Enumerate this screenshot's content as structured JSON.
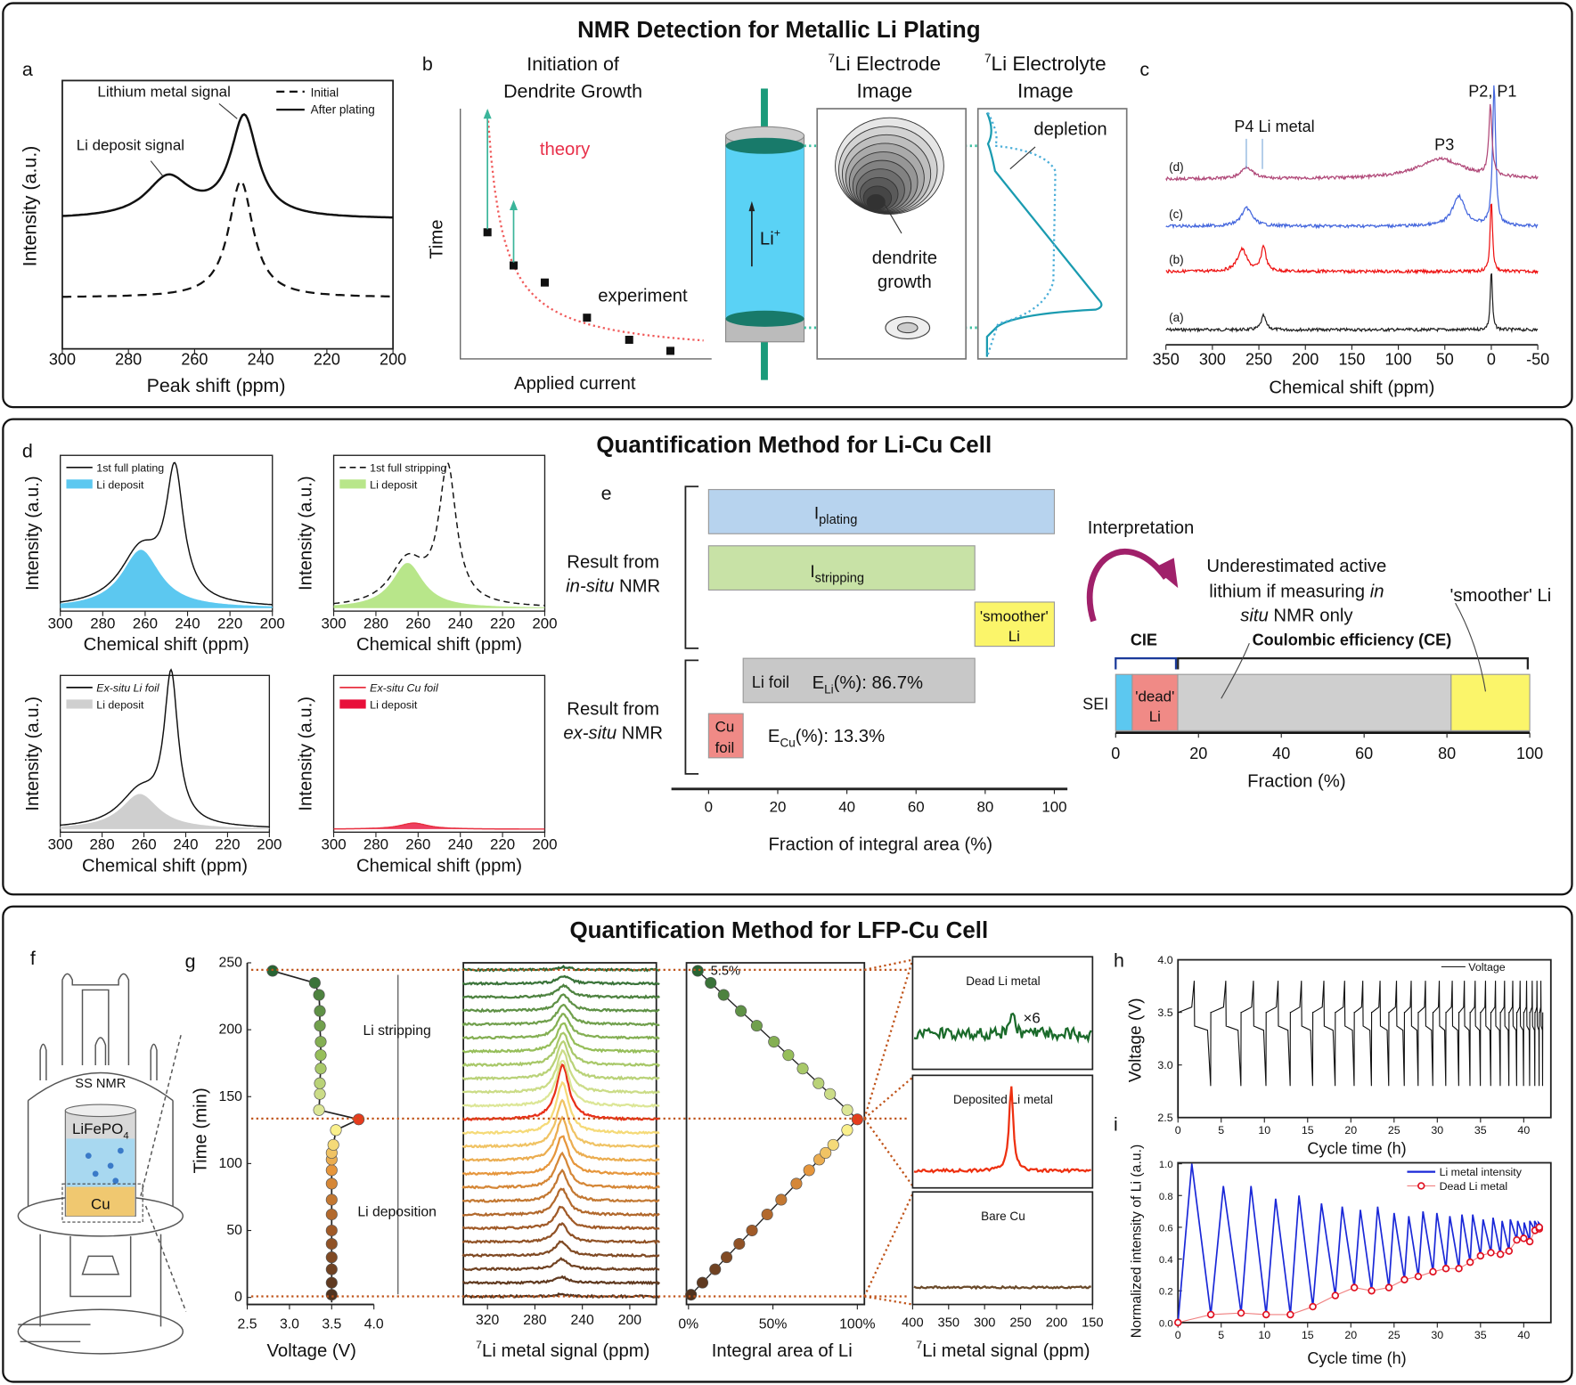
{
  "panel1": {
    "title": "NMR Detection for Metallic Li Plating"
  },
  "a": {
    "label": "a",
    "xlabel": "Peak shift (ppm)",
    "ylabel": "Intensity (a.u.)",
    "xticks": [
      "300",
      "280",
      "260",
      "240",
      "220",
      "200"
    ],
    "legend_initial": "Initial",
    "legend_after": "After plating",
    "ann_metal": "Lithium metal signal",
    "ann_deposit": "Li deposit signal"
  },
  "b": {
    "label": "b",
    "title1": "Initiation of",
    "title2": "Dendrite Growth",
    "ylabel": "Time",
    "xlabel": "Applied current",
    "theory": "theory",
    "experiment": "experiment",
    "li_ion": "Li",
    "li_ion_sup": "+",
    "electrode_sup": "7",
    "electrode_title1": "Li Electrode",
    "electrode_title2": "Image",
    "electrolyte_sup": "7",
    "electrolyte_title1": "Li Electrolyte",
    "electrolyte_title2": "Image",
    "dendrite1": "dendrite",
    "dendrite2": "growth",
    "depletion": "depletion"
  },
  "c": {
    "label": "c",
    "xlabel": "Chemical shift (ppm)",
    "xticks": [
      "350",
      "300",
      "250",
      "200",
      "150",
      "100",
      "50",
      "0",
      "-50"
    ],
    "traces": [
      "(a)",
      "(b)",
      "(c)",
      "(d)"
    ],
    "ann_p21": "P2, P1",
    "ann_p4": "P4 Li metal",
    "ann_p3": "P3"
  },
  "panel2": {
    "title": "Quantification Method for Li-Cu Cell"
  },
  "d": {
    "label": "d",
    "xlabel": "Chemical shift (ppm)",
    "ylabel": "Intensity (a.u.)",
    "xticks": [
      "300",
      "280",
      "260",
      "240",
      "220",
      "200"
    ],
    "plots": [
      {
        "legend_line": "1st full plating",
        "legend_fill": "Li deposit"
      },
      {
        "legend_line": "1st full stripping",
        "legend_fill": "Li deposit"
      },
      {
        "legend_line": "Ex-situ Li foil",
        "legend_fill": "Li deposit"
      },
      {
        "legend_line": "Ex-situ Cu foil",
        "legend_fill": "Li deposit"
      }
    ]
  },
  "e": {
    "label": "e",
    "insitu1": "Result from",
    "insitu2": "in-situ",
    "insitu3": " NMR",
    "exsitu1": "Result from",
    "exsitu2": "ex-situ",
    "exsitu3": " NMR",
    "plating_I": "I",
    "plating_sub": "plating",
    "stripping_I": "I",
    "stripping_sub": "stripping",
    "smoother1": "'smoother'",
    "smoother2": "Li",
    "lifoil": "Li foil",
    "eli_E": "E",
    "eli_sub": "Li",
    "eli_val": "(%): 86.7%",
    "cufoil1": "Cu",
    "cufoil2": "foil",
    "ecu_E": "E",
    "ecu_sub": "Cu",
    "ecu_val": "(%): 13.3%",
    "xticks": [
      "0",
      "20",
      "40",
      "60",
      "80",
      "100"
    ],
    "xlabel": "Fraction of integral area (%)",
    "interpretation": "Interpretation",
    "under1": "Underestimated active",
    "under2": "lithium if measuring ",
    "under2i": "in",
    "under3i": "situ",
    "under3": " NMR only",
    "smoother_li": "'smoother' Li",
    "cie": "CIE",
    "ce": "Coulombic efficiency (CE)",
    "sei": "SEI",
    "dead1": "'dead'",
    "dead2": "Li",
    "frac_xticks": [
      "0",
      "20",
      "40",
      "60",
      "80",
      "100"
    ],
    "frac_xlabel": "Fraction (%)",
    "colors": {
      "plating": "#b7d3ee",
      "stripping": "#c8e2a6",
      "smoother": "#fbf56a",
      "lifoil": "#c8c8c8",
      "cufoil": "#f08a86",
      "sei": "#5cc8f0"
    }
  },
  "panel3": {
    "title": "Quantification Method for LFP-Cu Cell"
  },
  "f": {
    "label": "f",
    "ssnmr": "SS NMR",
    "lfp": "LiFePO",
    "lfp_sub": "4",
    "cu": "Cu"
  },
  "g": {
    "label": "g",
    "ylabel": "Time (min)",
    "yticks": [
      "0",
      "50",
      "100",
      "150",
      "200",
      "250"
    ],
    "v_xticks": [
      "2.5",
      "3.0",
      "3.5",
      "4.0"
    ],
    "v_xlabel": "Voltage (V)",
    "stripping": "Li stripping",
    "deposition": "Li deposition",
    "spec_xticks": [
      "320",
      "280",
      "240",
      "200"
    ],
    "spec_sup": "7",
    "spec_xlabel": "Li metal signal (ppm)",
    "int_xticks": [
      "0%",
      "50%",
      "100%"
    ],
    "int_xlabel": "Integral area of Li",
    "int_ann": "5.5%",
    "inset_titles": [
      "Dead Li metal",
      "Deposited Li metal",
      "Bare Cu"
    ],
    "inset_mult": "×6",
    "inset_xticks": [
      "400",
      "350",
      "300",
      "250",
      "200",
      "150"
    ],
    "inset_sup": "7",
    "inset_xlabel": "Li metal signal (ppm)"
  },
  "h": {
    "label": "h",
    "ylabel": "Voltage (V)",
    "yticks": [
      "2.5",
      "3.0",
      "3.5",
      "4.0"
    ],
    "xticks": [
      "0",
      "5",
      "10",
      "15",
      "20",
      "25",
      "30",
      "35",
      "40"
    ],
    "xlabel": "Cycle time (h)",
    "legend": "Voltage"
  },
  "i": {
    "label": "i",
    "ylabel": "Normalized intensity of Li (a.u.)",
    "yticks": [
      "0.0",
      "0.2",
      "0.4",
      "0.6",
      "0.8",
      "1.0"
    ],
    "xticks": [
      "0",
      "5",
      "10",
      "15",
      "20",
      "25",
      "30",
      "35",
      "40"
    ],
    "xlabel": "Cycle time (h)",
    "legend_li": "Li metal intensity",
    "legend_dead": "Dead Li metal",
    "cycle_boundaries_h": [
      0,
      3.8,
      7.3,
      10.2,
      13,
      15.6,
      18.2,
      20.4,
      22.4,
      24.4,
      26.2,
      27.8,
      29.5,
      31,
      32.5,
      33.8,
      35,
      36.2,
      37.3,
      38.3,
      39.2,
      40,
      40.7,
      41.3,
      41.8,
      42.2
    ],
    "dead_li": [
      0,
      0.05,
      0.06,
      0.05,
      0.05,
      0.1,
      0.17,
      0.22,
      0.2,
      0.22,
      0.27,
      0.29,
      0.32,
      0.34,
      0.34,
      0.38,
      0.42,
      0.44,
      0.43,
      0.45,
      0.52,
      0.53,
      0.51,
      0.58,
      0.59,
      0.6
    ],
    "peak_li": [
      1.0,
      0.86,
      0.86,
      0.78,
      0.8,
      0.75,
      0.73,
      0.71,
      0.73,
      0.69,
      0.67,
      0.7,
      0.69,
      0.67,
      0.68,
      0.68,
      0.65,
      0.66,
      0.64,
      0.65,
      0.64,
      0.63,
      0.64,
      0.64,
      0.63
    ]
  }
}
